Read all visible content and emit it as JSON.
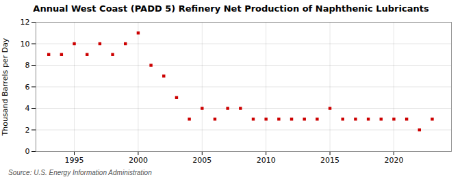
{
  "chart_data": {
    "type": "scatter",
    "title": "Annual West Coast (PADD 5) Refinery Net Production of Naphthenic Lubricants",
    "ylabel": "Thousand Barrels per Day",
    "source": "Source: U.S. Energy Information Administration",
    "x": [
      1993,
      1994,
      1995,
      1996,
      1997,
      1998,
      1999,
      2000,
      2001,
      2002,
      2003,
      2004,
      2005,
      2006,
      2007,
      2008,
      2009,
      2010,
      2011,
      2012,
      2013,
      2014,
      2015,
      2016,
      2017,
      2018,
      2019,
      2020,
      2021,
      2022,
      2023
    ],
    "values": [
      9,
      9,
      10,
      9,
      10,
      9,
      10,
      11,
      8,
      7,
      5,
      3,
      4,
      3,
      4,
      4,
      3,
      3,
      3,
      3,
      3,
      3,
      4,
      3,
      3,
      3,
      3,
      3,
      3,
      2,
      3
    ],
    "color": "#cc0000",
    "marker": "square",
    "xlim": [
      1992,
      2024.5
    ],
    "xticks": [
      1995,
      2000,
      2005,
      2010,
      2015,
      2020
    ],
    "ylim": [
      0,
      12
    ],
    "yticks": [
      0,
      2,
      4,
      6,
      8,
      10,
      12
    ],
    "grid": true
  }
}
